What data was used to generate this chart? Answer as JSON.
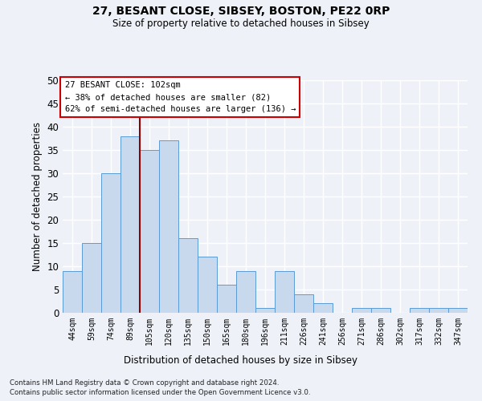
{
  "title1": "27, BESANT CLOSE, SIBSEY, BOSTON, PE22 0RP",
  "title2": "Size of property relative to detached houses in Sibsey",
  "xlabel": "Distribution of detached houses by size in Sibsey",
  "ylabel": "Number of detached properties",
  "categories": [
    "44sqm",
    "59sqm",
    "74sqm",
    "89sqm",
    "105sqm",
    "120sqm",
    "135sqm",
    "150sqm",
    "165sqm",
    "180sqm",
    "196sqm",
    "211sqm",
    "226sqm",
    "241sqm",
    "256sqm",
    "271sqm",
    "286sqm",
    "302sqm",
    "317sqm",
    "332sqm",
    "347sqm"
  ],
  "values": [
    9,
    15,
    30,
    38,
    35,
    37,
    16,
    12,
    6,
    9,
    1,
    9,
    4,
    2,
    0,
    1,
    1,
    0,
    1,
    1,
    1
  ],
  "bar_color": "#c9d9ed",
  "bar_edge_color": "#5b9bd5",
  "vline_x_index": 3,
  "vline_color": "#8b0000",
  "annotation_line1": "27 BESANT CLOSE: 102sqm",
  "annotation_line2": "← 38% of detached houses are smaller (82)",
  "annotation_line3": "62% of semi-detached houses are larger (136) →",
  "annotation_box_color": "#ffffff",
  "annotation_box_edge": "#cc0000",
  "ylim": [
    0,
    50
  ],
  "yticks": [
    0,
    5,
    10,
    15,
    20,
    25,
    30,
    35,
    40,
    45,
    50
  ],
  "footnote1": "Contains HM Land Registry data © Crown copyright and database right 2024.",
  "footnote2": "Contains public sector information licensed under the Open Government Licence v3.0.",
  "bg_color": "#eef2f8",
  "plot_bg_color": "#eef2f8",
  "grid_color": "#ffffff"
}
